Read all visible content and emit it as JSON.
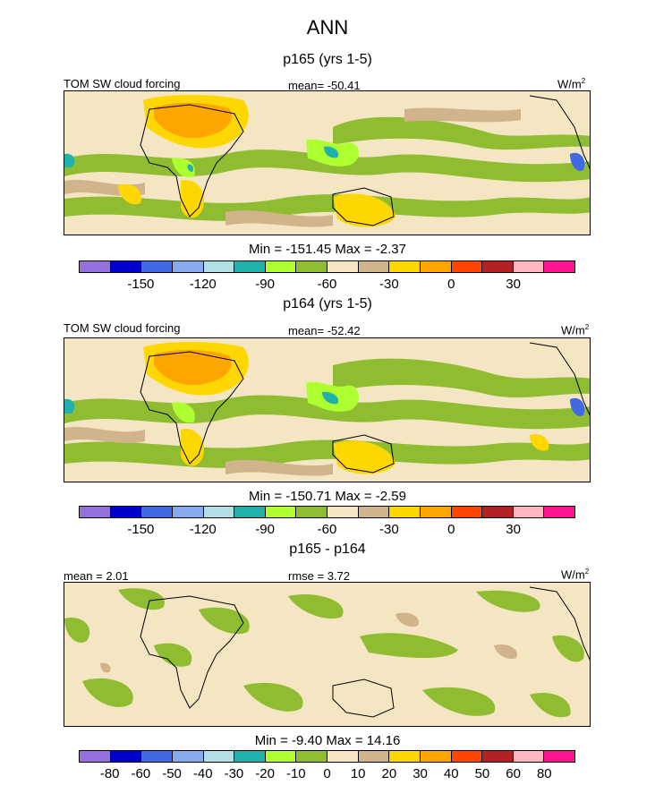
{
  "title": "ANN",
  "panels": [
    {
      "title": "p165 (yrs 1-5)",
      "left_label": "TOM SW cloud forcing",
      "center_label": "mean= -50.41",
      "units": "W/m",
      "units_sup": "2",
      "stats": "Min = -151.45 Max =  -2.37"
    },
    {
      "title": "p164 (yrs 1-5)",
      "left_label": "TOM SW cloud forcing",
      "center_label": "mean= -52.42",
      "units": "W/m",
      "units_sup": "2",
      "stats": "Min = -150.71 Max =  -2.59"
    },
    {
      "title": "p165 - p164",
      "left_label": "mean =   2.01",
      "center_label": "rmse =   3.72",
      "units": "W/m",
      "units_sup": "2",
      "stats": "Min =  -9.40 Max =  14.16"
    }
  ],
  "colorbars": {
    "field": {
      "colors": [
        "#9370db",
        "#0000cd",
        "#4169e1",
        "#87a9ee",
        "#b0e0e6",
        "#20b2aa",
        "#adff2f",
        "#8fbc30",
        "#f5e6c3",
        "#d2b48c",
        "#ffd700",
        "#ffa500",
        "#ff4500",
        "#b22222",
        "#ffb6c1",
        "#ff1493"
      ],
      "tick_labels": [
        "-150",
        "-120",
        "-90",
        "-60",
        "-30",
        "0",
        "30"
      ],
      "tick_positions": [
        2,
        4,
        6,
        8,
        10,
        12,
        14
      ]
    },
    "diff": {
      "colors": [
        "#9370db",
        "#0000cd",
        "#4169e1",
        "#87a9ee",
        "#b0e0e6",
        "#20b2aa",
        "#adff2f",
        "#8fbc30",
        "#f5e6c3",
        "#d2b48c",
        "#ffd700",
        "#ffa500",
        "#ff4500",
        "#b22222",
        "#ffb6c1",
        "#ff1493"
      ],
      "tick_labels": [
        "-80",
        "-60",
        "-50",
        "-40",
        "-30",
        "-20",
        "-10",
        "0",
        "10",
        "20",
        "30",
        "40",
        "50",
        "60",
        "80"
      ],
      "tick_positions": [
        1,
        2,
        3,
        4,
        5,
        6,
        7,
        8,
        9,
        10,
        11,
        12,
        13,
        14,
        15
      ]
    }
  },
  "chart_data": [
    {
      "type": "heatmap",
      "title": "p165 (yrs 1-5)",
      "variable": "TOM SW cloud forcing",
      "mean": -50.41,
      "units": "W/m2",
      "min": -151.45,
      "max": -2.37,
      "levels": [
        -150,
        -135,
        -120,
        -105,
        -90,
        -75,
        -60,
        -45,
        -30,
        -15,
        0,
        15,
        30,
        45
      ],
      "legend": "bottom"
    },
    {
      "type": "heatmap",
      "title": "p164 (yrs 1-5)",
      "variable": "TOM SW cloud forcing",
      "mean": -52.42,
      "units": "W/m2",
      "min": -150.71,
      "max": -2.59,
      "levels": [
        -150,
        -135,
        -120,
        -105,
        -90,
        -75,
        -60,
        -45,
        -30,
        -15,
        0,
        15,
        30,
        45
      ],
      "legend": "bottom"
    },
    {
      "type": "heatmap",
      "title": "p165 - p164",
      "mean": 2.01,
      "rmse": 3.72,
      "units": "W/m2",
      "min": -9.4,
      "max": 14.16,
      "levels": [
        -80,
        -60,
        -50,
        -40,
        -30,
        -20,
        -10,
        0,
        10,
        20,
        30,
        40,
        50,
        60,
        80
      ],
      "legend": "bottom"
    }
  ]
}
